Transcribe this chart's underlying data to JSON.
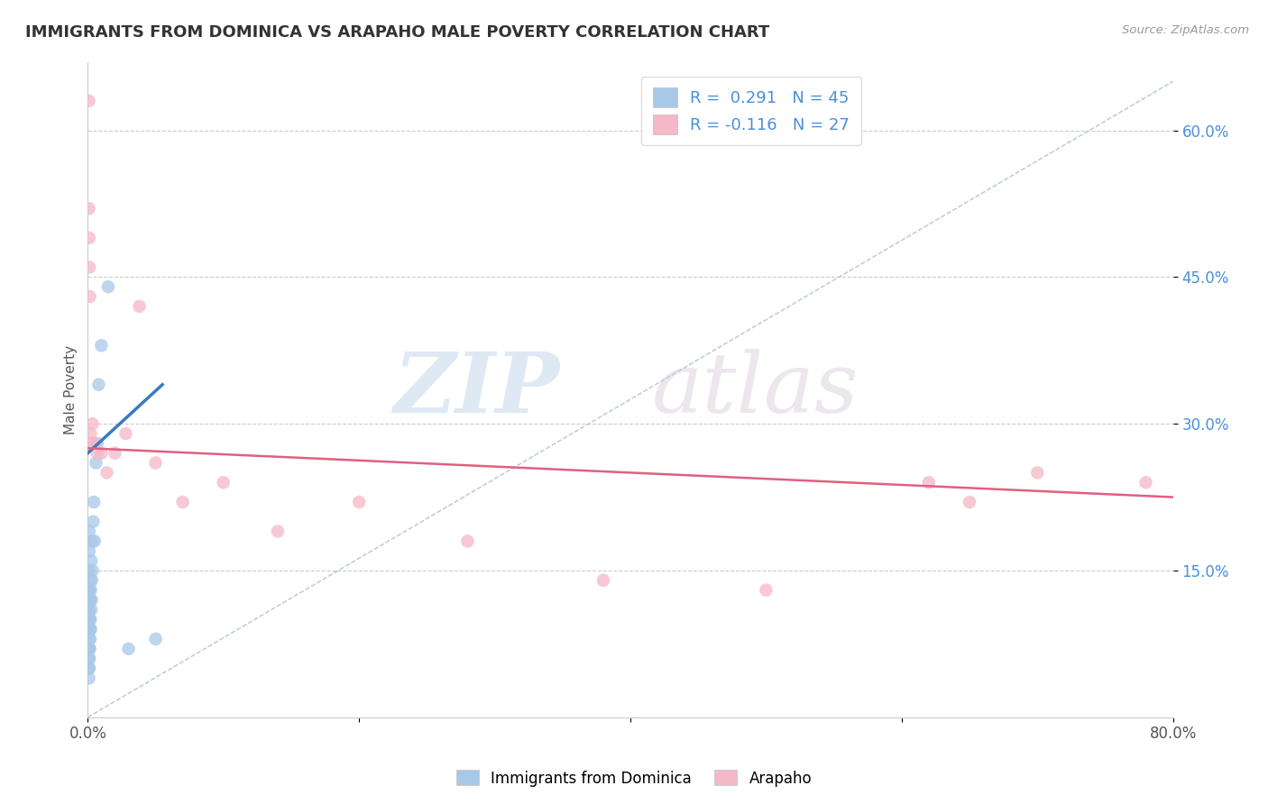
{
  "title": "IMMIGRANTS FROM DOMINICA VS ARAPAHO MALE POVERTY CORRELATION CHART",
  "source": "Source: ZipAtlas.com",
  "ylabel": "Male Poverty",
  "xlim": [
    0,
    0.8
  ],
  "ylim": [
    0,
    0.67
  ],
  "ytick_positions": [
    0.15,
    0.3,
    0.45,
    0.6
  ],
  "ytick_labels": [
    "15.0%",
    "30.0%",
    "45.0%",
    "60.0%"
  ],
  "blue_color": "#a8c8e8",
  "pink_color": "#f4b8c8",
  "blue_line_color": "#3a7abf",
  "pink_line_color": "#e06080",
  "ref_line_color": "#a0b8d0",
  "watermark_zip": "ZIP",
  "watermark_atlas": "atlas",
  "blue_scatter_x": [
    0.0008,
    0.0008,
    0.0008,
    0.0008,
    0.0008,
    0.0008,
    0.0008,
    0.0008,
    0.0008,
    0.0008,
    0.001,
    0.001,
    0.001,
    0.001,
    0.001,
    0.001,
    0.001,
    0.001,
    0.0012,
    0.0012,
    0.0015,
    0.0015,
    0.0015,
    0.0018,
    0.0018,
    0.002,
    0.002,
    0.0022,
    0.0022,
    0.0025,
    0.0025,
    0.0028,
    0.003,
    0.003,
    0.0035,
    0.004,
    0.0045,
    0.005,
    0.006,
    0.007,
    0.008,
    0.01,
    0.015,
    0.03,
    0.05
  ],
  "blue_scatter_y": [
    0.04,
    0.05,
    0.06,
    0.07,
    0.08,
    0.09,
    0.1,
    0.11,
    0.12,
    0.13,
    0.05,
    0.07,
    0.09,
    0.11,
    0.13,
    0.15,
    0.17,
    0.19,
    0.06,
    0.1,
    0.07,
    0.09,
    0.12,
    0.08,
    0.12,
    0.1,
    0.14,
    0.09,
    0.13,
    0.11,
    0.16,
    0.12,
    0.14,
    0.18,
    0.15,
    0.2,
    0.22,
    0.18,
    0.26,
    0.28,
    0.34,
    0.38,
    0.44,
    0.07,
    0.08
  ],
  "pink_scatter_x": [
    0.0008,
    0.0008,
    0.001,
    0.0012,
    0.0015,
    0.002,
    0.0025,
    0.0035,
    0.005,
    0.007,
    0.01,
    0.014,
    0.02,
    0.028,
    0.038,
    0.05,
    0.07,
    0.1,
    0.14,
    0.2,
    0.28,
    0.38,
    0.5,
    0.62,
    0.7,
    0.65,
    0.78
  ],
  "pink_scatter_y": [
    0.63,
    0.52,
    0.49,
    0.46,
    0.43,
    0.29,
    0.28,
    0.3,
    0.28,
    0.27,
    0.27,
    0.25,
    0.27,
    0.29,
    0.42,
    0.26,
    0.22,
    0.24,
    0.19,
    0.22,
    0.18,
    0.14,
    0.13,
    0.24,
    0.25,
    0.22,
    0.24
  ],
  "blue_trend_x": [
    0.0,
    0.055
  ],
  "blue_trend_y": [
    0.27,
    0.34
  ],
  "pink_trend_x": [
    0.0,
    0.8
  ],
  "pink_trend_y": [
    0.275,
    0.225
  ],
  "ref_line_x": [
    0.0,
    0.8
  ],
  "ref_line_y": [
    0.0,
    0.65
  ]
}
